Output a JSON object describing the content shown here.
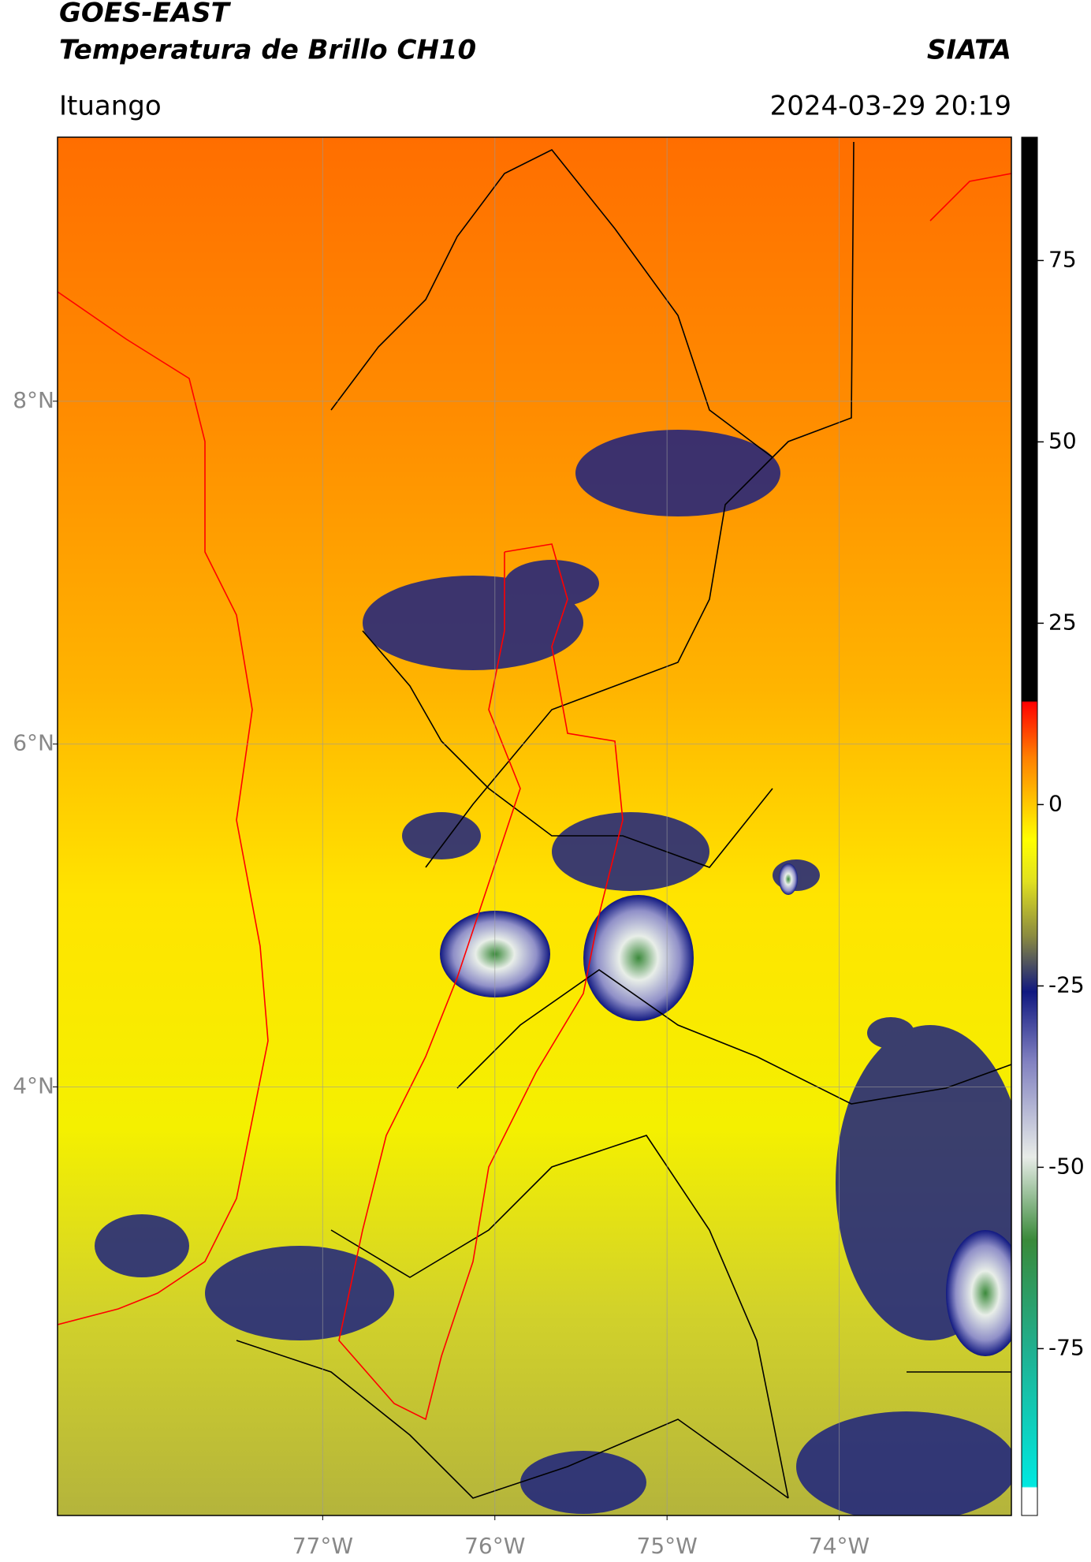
{
  "header": {
    "title": "GOES-EAST",
    "subtitle": "Temperatura de Brillo CH10",
    "source": "SIATA",
    "location": "Ituango",
    "datetime": "2024-03-29 20:19"
  },
  "chart_data": {
    "type": "map",
    "xlim": [
      -78.54,
      -73.0
    ],
    "ylim": [
      1.5,
      9.54
    ],
    "xticks": [
      {
        "value": -77,
        "label": "77°W"
      },
      {
        "value": -76,
        "label": "76°W"
      },
      {
        "value": -75,
        "label": "75°W"
      },
      {
        "value": -74,
        "label": "74°W"
      }
    ],
    "yticks": [
      {
        "value": 8,
        "label": "8°N"
      },
      {
        "value": 6,
        "label": "6°N"
      },
      {
        "value": 4,
        "label": "4°N"
      }
    ],
    "grid": true,
    "colorbar": {
      "lim": [
        -98,
        92
      ],
      "ticks": [
        75,
        50,
        25,
        0,
        -25,
        -50,
        -75
      ]
    }
  }
}
